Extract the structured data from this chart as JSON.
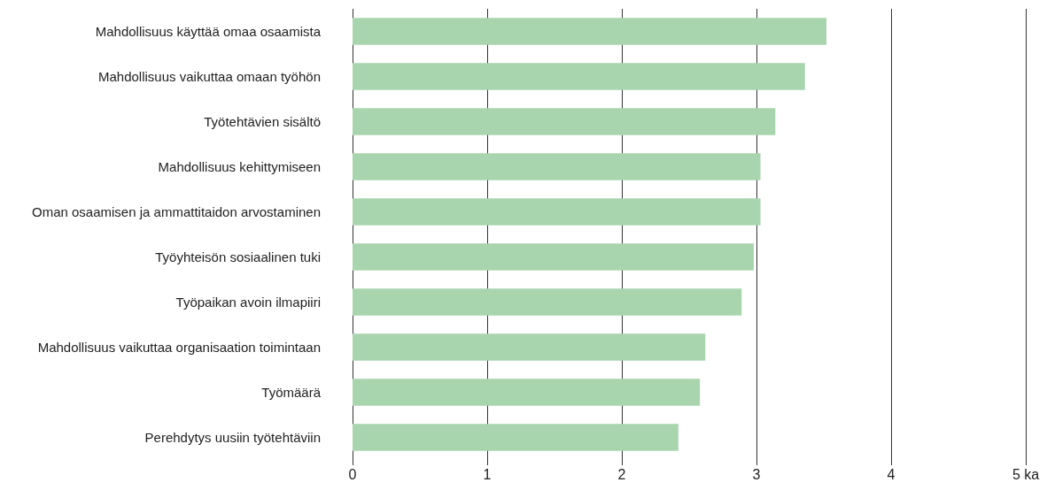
{
  "chart_data": {
    "type": "bar",
    "orientation": "horizontal",
    "categories": [
      "Mahdollisuus käyttää omaa osaamista",
      "Mahdollisuus vaikuttaa omaan työhön",
      "Työtehtävien sisältö",
      "Mahdollisuus kehittymiseen",
      "Oman osaamisen ja ammattitaidon arvostaminen",
      "Työyhteisön sosiaalinen tuki",
      "Työpaikan avoin ilmapiiri",
      "Mahdollisuus vaikuttaa organisaation toimintaan",
      "Työmäärä",
      "Perehdytys uusiin työtehtäviin"
    ],
    "values": [
      3.52,
      3.36,
      3.14,
      3.03,
      3.03,
      2.98,
      2.89,
      2.62,
      2.58,
      2.42
    ],
    "color": "#a9d5ae",
    "xlim": [
      0,
      5
    ],
    "xticks": [
      0,
      1,
      2,
      3,
      4,
      {
        "value": 5,
        "label": "5 ka"
      }
    ],
    "grid": "x"
  }
}
